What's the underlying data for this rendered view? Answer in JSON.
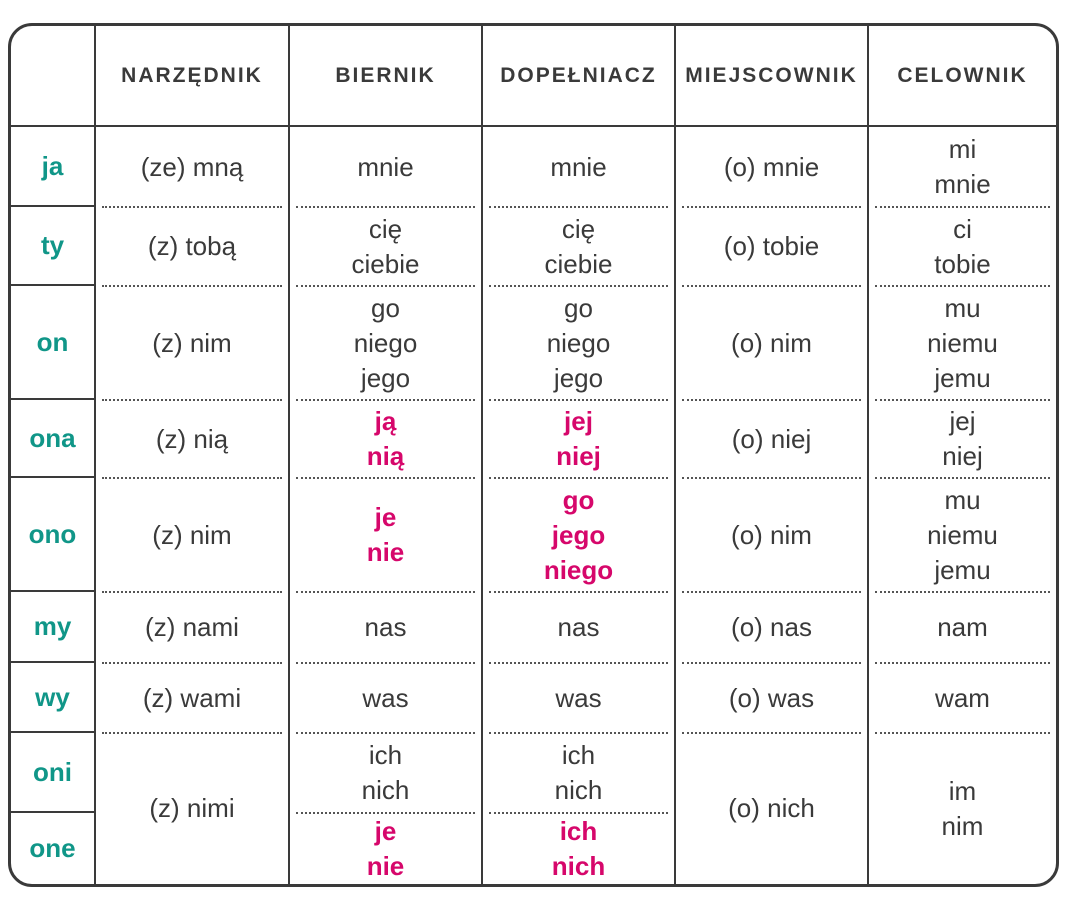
{
  "colors": {
    "text": "#3a3a3a",
    "pronoun": "#109688",
    "accent": "#d6076b"
  },
  "headers": [
    "",
    "NARZĘDNIK",
    "BIERNIK",
    "DOPEŁNIACZ",
    "MIEJSCOWNIK",
    "CELOWNIK"
  ],
  "rows": [
    {
      "pronoun": "ja",
      "cells": [
        {
          "lines": [
            "(ze) mną"
          ]
        },
        {
          "lines": [
            "mnie"
          ]
        },
        {
          "lines": [
            "mnie"
          ]
        },
        {
          "lines": [
            "(o) mnie"
          ]
        },
        {
          "lines": [
            "mi",
            "mnie"
          ]
        }
      ]
    },
    {
      "pronoun": "ty",
      "cells": [
        {
          "lines": [
            "(z) tobą"
          ]
        },
        {
          "lines": [
            "cię",
            "ciebie"
          ]
        },
        {
          "lines": [
            "cię",
            "ciebie"
          ]
        },
        {
          "lines": [
            "(o) tobie"
          ]
        },
        {
          "lines": [
            "ci",
            "tobie"
          ]
        }
      ]
    },
    {
      "pronoun": "on",
      "cells": [
        {
          "lines": [
            "(z) nim"
          ]
        },
        {
          "lines": [
            "go",
            "niego",
            "jego"
          ]
        },
        {
          "lines": [
            "go",
            "niego",
            "jego"
          ]
        },
        {
          "lines": [
            "(o) nim"
          ]
        },
        {
          "lines": [
            "mu",
            "niemu",
            "jemu"
          ]
        }
      ]
    },
    {
      "pronoun": "ona",
      "cells": [
        {
          "lines": [
            "(z) nią"
          ]
        },
        {
          "lines": [
            "ją",
            "nią"
          ],
          "accent": true
        },
        {
          "lines": [
            "jej",
            "niej"
          ],
          "accent": true
        },
        {
          "lines": [
            "(o) niej"
          ]
        },
        {
          "lines": [
            "jej",
            "niej"
          ]
        }
      ]
    },
    {
      "pronoun": "ono",
      "cells": [
        {
          "lines": [
            "(z) nim"
          ]
        },
        {
          "lines": [
            "je",
            "nie"
          ],
          "accent": true
        },
        {
          "lines": [
            "go",
            "jego",
            "niego"
          ],
          "accent": true
        },
        {
          "lines": [
            "(o) nim"
          ]
        },
        {
          "lines": [
            "mu",
            "niemu",
            "jemu"
          ]
        }
      ]
    },
    {
      "pronoun": "my",
      "cells": [
        {
          "lines": [
            "(z) nami"
          ]
        },
        {
          "lines": [
            "nas"
          ]
        },
        {
          "lines": [
            "nas"
          ]
        },
        {
          "lines": [
            "(o) nas"
          ]
        },
        {
          "lines": [
            "nam"
          ]
        }
      ]
    },
    {
      "pronoun": "wy",
      "cells": [
        {
          "lines": [
            "(z) wami"
          ]
        },
        {
          "lines": [
            "was"
          ]
        },
        {
          "lines": [
            "was"
          ]
        },
        {
          "lines": [
            "(o) was"
          ]
        },
        {
          "lines": [
            "wam"
          ]
        }
      ]
    },
    {
      "pronoun": "oni",
      "cells": [
        {
          "lines": [
            "(z) nimi"
          ]
        },
        {
          "lines": [
            "ich",
            "nich"
          ]
        },
        {
          "lines": [
            "ich",
            "nich"
          ]
        },
        {
          "lines": [
            "(o) nich"
          ]
        },
        {
          "lines": [
            "im",
            "nim"
          ]
        }
      ]
    },
    {
      "pronoun": "one",
      "cells": [
        null,
        {
          "lines": [
            "je",
            "nie"
          ],
          "accent": true
        },
        {
          "lines": [
            "ich",
            "nich"
          ],
          "accent": true
        },
        null,
        null
      ]
    }
  ]
}
